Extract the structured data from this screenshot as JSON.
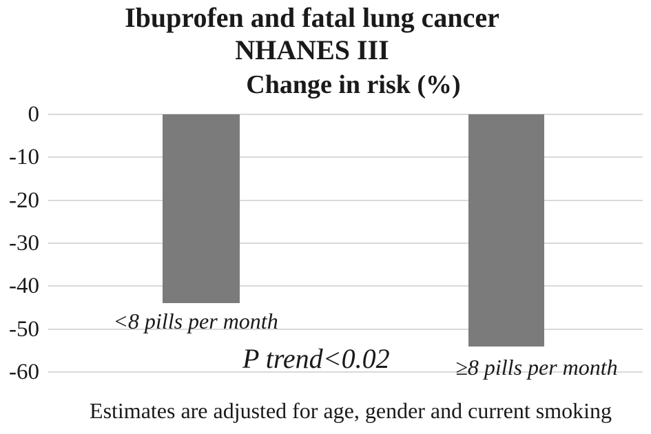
{
  "chart_data": {
    "type": "bar",
    "title_lines": [
      "Ibuprofen and fatal lung cancer",
      "NHANES III"
    ],
    "subtitle": "Change in risk (%)",
    "categories": [
      "<8 pills per month",
      "≥8 pills per month"
    ],
    "values": [
      -44,
      -54
    ],
    "ylim": [
      -60,
      0
    ],
    "yticks": [
      0,
      -10,
      -20,
      -30,
      -40,
      -50,
      -60
    ],
    "xlabel": "",
    "ylabel": "Change in risk (%)",
    "grid": true,
    "legend": "none",
    "annotations": [
      "P trend<0.02"
    ],
    "footnote": "Estimates are adjusted for age, gender and current smoking",
    "bar_color": "#7b7b7b",
    "gridline_color": "#d9d9d9",
    "text_color": "#1a1a1a",
    "background_color": "#ffffff"
  }
}
